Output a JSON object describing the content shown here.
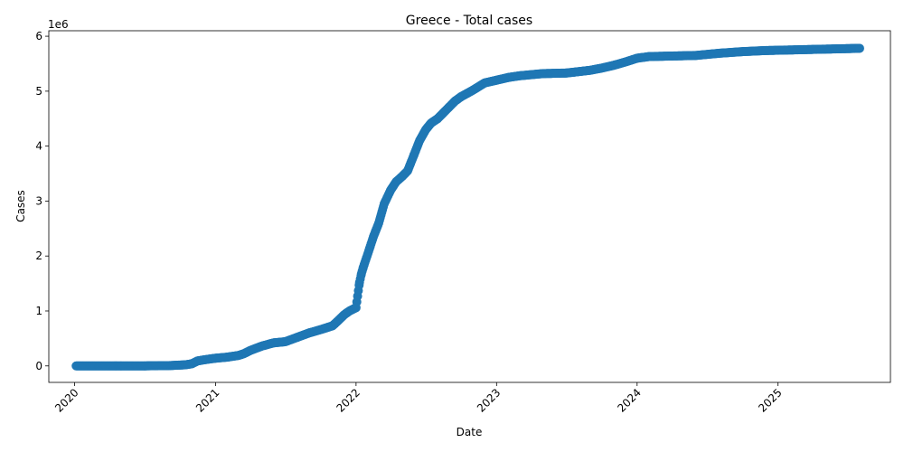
{
  "chart_data": {
    "type": "scatter",
    "title": "Greece - Total cases",
    "xlabel": "Date",
    "ylabel": "Cases",
    "y_scale_label": "1e6",
    "x_tick_labels": [
      "2020",
      "2021",
      "2022",
      "2023",
      "2024",
      "2025"
    ],
    "y_tick_labels": [
      "0",
      "1",
      "2",
      "3",
      "4",
      "5",
      "6"
    ],
    "grid": false,
    "xlim": [
      "2019-10-26",
      "2025-10-20"
    ],
    "ylim": [
      -0.3,
      6.1
    ],
    "marker_color": "#1f77b4",
    "series": [
      {
        "x": [
          "2020-01-05",
          "2020-03-01",
          "2020-05-01",
          "2020-07-01",
          "2020-09-01",
          "2020-10-15",
          "2020-11-01",
          "2020-11-15",
          "2020-12-01",
          "2021-01-01",
          "2021-02-01",
          "2021-03-01",
          "2021-03-15",
          "2021-04-01",
          "2021-05-01",
          "2021-06-01",
          "2021-07-01",
          "2021-08-01",
          "2021-09-01",
          "2021-10-01",
          "2021-11-01",
          "2021-11-15",
          "2021-12-01",
          "2021-12-15",
          "2022-01-01",
          "2022-01-05",
          "2022-01-10",
          "2022-01-15",
          "2022-01-20",
          "2022-02-01",
          "2022-02-15",
          "2022-03-01",
          "2022-03-15",
          "2022-04-01",
          "2022-04-15",
          "2022-05-01",
          "2022-05-15",
          "2022-06-01",
          "2022-06-15",
          "2022-07-01",
          "2022-07-15",
          "2022-08-01",
          "2022-08-15",
          "2022-09-01",
          "2022-09-15",
          "2022-10-01",
          "2022-11-01",
          "2022-12-01",
          "2023-01-01",
          "2023-02-01",
          "2023-03-01",
          "2023-05-01",
          "2023-07-01",
          "2023-09-01",
          "2023-10-01",
          "2023-11-01",
          "2023-12-01",
          "2024-01-01",
          "2024-02-01",
          "2024-04-01",
          "2024-06-01",
          "2024-08-01",
          "2024-10-01",
          "2024-12-01",
          "2025-02-01",
          "2025-04-01",
          "2025-06-01",
          "2025-08-01"
        ],
        "y": [
          0,
          0,
          0,
          0.001,
          0.005,
          0.02,
          0.04,
          0.09,
          0.11,
          0.14,
          0.16,
          0.19,
          0.22,
          0.28,
          0.36,
          0.42,
          0.44,
          0.52,
          0.6,
          0.66,
          0.73,
          0.82,
          0.93,
          1.0,
          1.06,
          1.27,
          1.52,
          1.68,
          1.8,
          2.05,
          2.35,
          2.6,
          2.95,
          3.2,
          3.35,
          3.45,
          3.55,
          3.85,
          4.1,
          4.3,
          4.42,
          4.5,
          4.6,
          4.72,
          4.82,
          4.9,
          5.02,
          5.15,
          5.2,
          5.25,
          5.28,
          5.32,
          5.33,
          5.38,
          5.42,
          5.47,
          5.53,
          5.6,
          5.63,
          5.64,
          5.65,
          5.69,
          5.72,
          5.74,
          5.75,
          5.76,
          5.77,
          5.78
        ]
      }
    ]
  }
}
